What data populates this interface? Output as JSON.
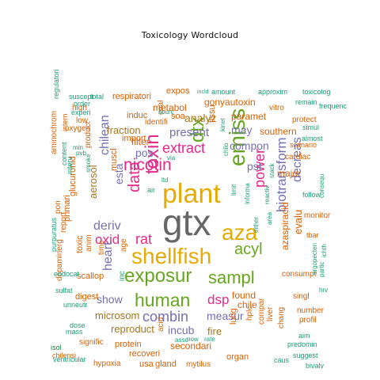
{
  "title": "Toxicology  Wordcloud",
  "palette": {
    "teal": "#1b9e77",
    "orange": "#d95f02",
    "purple": "#7570b3",
    "pink": "#e7298a",
    "green": "#66a61e",
    "gold": "#e6ab02",
    "brown": "#a6761d",
    "gray": "#666666"
  },
  "words": [
    {
      "text": "gtx",
      "color": "gray"
    },
    {
      "text": "shellfish",
      "color": "gold"
    },
    {
      "text": "plant",
      "color": "gold"
    },
    {
      "text": "aza",
      "color": "gold"
    },
    {
      "text": "exposur",
      "color": "green"
    },
    {
      "text": "human",
      "color": "green"
    },
    {
      "text": "sampl",
      "color": "green"
    },
    {
      "text": "emiss",
      "color": "green"
    },
    {
      "text": "toxin",
      "color": "pink"
    },
    {
      "text": "acyl",
      "color": "green"
    },
    {
      "text": "nicotin",
      "color": "pink"
    },
    {
      "text": "dtx",
      "color": "green"
    },
    {
      "text": "data",
      "color": "pink"
    },
    {
      "text": "extract",
      "color": "pink"
    },
    {
      "text": "rat",
      "color": "pink"
    },
    {
      "text": "oxid",
      "color": "pink"
    },
    {
      "text": "power",
      "color": "pink"
    },
    {
      "text": "biotransform",
      "color": "purple"
    },
    {
      "text": "combin",
      "color": "purple"
    },
    {
      "text": "dsp",
      "color": "pink"
    },
    {
      "text": "heart",
      "color": "purple"
    },
    {
      "text": "chilean",
      "color": "purple"
    },
    {
      "text": "deriv",
      "color": "purple"
    },
    {
      "text": "show",
      "color": "purple"
    },
    {
      "text": "decreas",
      "color": "purple"
    },
    {
      "text": "present",
      "color": "purple"
    },
    {
      "text": "compon",
      "color": "purple"
    },
    {
      "text": "pst",
      "color": "purple"
    },
    {
      "text": "pos",
      "color": "purple"
    },
    {
      "text": "esta",
      "color": "purple"
    },
    {
      "text": "measur",
      "color": "purple"
    },
    {
      "text": "incub",
      "color": "purple"
    },
    {
      "text": "analyz",
      "color": "brown"
    },
    {
      "text": "microsom",
      "color": "brown"
    },
    {
      "text": "reproduct",
      "color": "brown"
    },
    {
      "text": "aerosol",
      "color": "brown"
    },
    {
      "text": "fraction",
      "color": "brown"
    },
    {
      "text": "fire",
      "color": "brown"
    },
    {
      "text": "may",
      "color": "purple"
    },
    {
      "text": "found",
      "color": "orange"
    },
    {
      "text": "chile",
      "color": "orange"
    },
    {
      "text": "secondari",
      "color": "orange"
    },
    {
      "text": "glucuronid",
      "color": "orange"
    },
    {
      "text": "evalu",
      "color": "orange"
    },
    {
      "text": "azaspiracid",
      "color": "orange"
    },
    {
      "text": "gonyautoxin",
      "color": "orange"
    },
    {
      "text": "southern",
      "color": "orange"
    },
    {
      "text": "paramet",
      "color": "orange"
    },
    {
      "text": "soa",
      "color": "orange"
    },
    {
      "text": "metabol",
      "color": "orange"
    },
    {
      "text": "induc",
      "color": "orange"
    },
    {
      "text": "respiratori",
      "color": "orange"
    },
    {
      "text": "expos",
      "color": "orange"
    },
    {
      "text": "filter",
      "color": "orange"
    },
    {
      "text": "import",
      "color": "orange"
    },
    {
      "text": "tissu",
      "color": "orange"
    },
    {
      "text": "lung",
      "color": "orange"
    },
    {
      "text": "hplc",
      "color": "orange"
    },
    {
      "text": "protein",
      "color": "orange"
    },
    {
      "text": "recoveri",
      "color": "orange"
    },
    {
      "text": "usa",
      "color": "orange"
    },
    {
      "text": "gland",
      "color": "orange"
    },
    {
      "text": "mytilus",
      "color": "orange"
    },
    {
      "text": "organ",
      "color": "orange"
    },
    {
      "text": "muscl",
      "color": "orange"
    },
    {
      "text": "primari",
      "color": "orange"
    },
    {
      "text": "major",
      "color": "orange"
    },
    {
      "text": "scallop",
      "color": "orange"
    },
    {
      "text": "digest",
      "color": "orange"
    },
    {
      "text": "signific",
      "color": "orange"
    },
    {
      "text": "hypoxia",
      "color": "orange"
    },
    {
      "text": "oxygen",
      "color": "orange"
    },
    {
      "text": "low",
      "color": "orange"
    },
    {
      "text": "high",
      "color": "orange"
    },
    {
      "text": "identifi",
      "color": "orange"
    },
    {
      "text": "cardiac",
      "color": "orange"
    },
    {
      "text": "consumpt",
      "color": "orange"
    },
    {
      "text": "singl",
      "color": "orange"
    },
    {
      "text": "liver",
      "color": "orange"
    },
    {
      "text": "chang",
      "color": "orange"
    },
    {
      "text": "profil",
      "color": "orange"
    },
    {
      "text": "number",
      "color": "orange"
    },
    {
      "text": "toxic",
      "color": "orange"
    },
    {
      "text": "anim",
      "color": "orange"
    },
    {
      "text": "time",
      "color": "orange"
    },
    {
      "text": "aminochrom",
      "color": "orange"
    },
    {
      "text": "pon",
      "color": "orange"
    },
    {
      "text": "report",
      "color": "orange"
    },
    {
      "text": "dopaminerg",
      "color": "orange"
    },
    {
      "text": "protect",
      "color": "orange"
    },
    {
      "text": "vitro",
      "color": "orange"
    },
    {
      "text": "age",
      "color": "orange"
    },
    {
      "text": "coal",
      "color": "orange"
    },
    {
      "text": "monitor",
      "color": "orange"
    },
    {
      "text": "compar",
      "color": "orange"
    },
    {
      "text": "tbar",
      "color": "orange"
    },
    {
      "text": "scenario",
      "color": "orange"
    },
    {
      "text": "isol",
      "color": "orange"
    },
    {
      "text": "chilensi",
      "color": "orange"
    },
    {
      "text": "product",
      "color": "orange"
    },
    {
      "text": "acid",
      "color": "orange"
    },
    {
      "text": "intern",
      "color": "orange"
    },
    {
      "text": "total",
      "color": "teal"
    },
    {
      "text": "suscept",
      "color": "teal"
    },
    {
      "text": "order",
      "color": "teal"
    },
    {
      "text": "experi",
      "color": "teal"
    },
    {
      "text": "regulatori",
      "color": "teal"
    },
    {
      "text": "content",
      "color": "teal"
    },
    {
      "text": "interv",
      "color": "teal"
    },
    {
      "text": "min",
      "color": "teal"
    },
    {
      "text": "pvb",
      "color": "teal"
    },
    {
      "text": "sourc",
      "color": "teal"
    },
    {
      "text": "incld",
      "color": "teal"
    },
    {
      "text": "amount",
      "color": "teal"
    },
    {
      "text": "approxim",
      "color": "teal"
    },
    {
      "text": "toxicolog",
      "color": "teal"
    },
    {
      "text": "remain",
      "color": "teal"
    },
    {
      "text": "frequenc",
      "color": "teal"
    },
    {
      "text": "simul",
      "color": "teal"
    },
    {
      "text": "almost",
      "color": "teal"
    },
    {
      "text": "follow",
      "color": "teal"
    },
    {
      "text": "consequ",
      "color": "teal"
    },
    {
      "text": "either",
      "color": "teal"
    },
    {
      "text": "reactiv",
      "color": "teal"
    },
    {
      "text": "stack",
      "color": "teal"
    },
    {
      "text": "area",
      "color": "teal"
    },
    {
      "text": "informa",
      "color": "teal"
    },
    {
      "text": "limit",
      "color": "teal"
    },
    {
      "text": "chilo",
      "color": "teal"
    },
    {
      "text": "via",
      "color": "teal"
    },
    {
      "text": "ltd",
      "color": "teal"
    },
    {
      "text": "air",
      "color": "teal"
    },
    {
      "text": "kinet",
      "color": "teal"
    },
    {
      "text": "purpuratus",
      "color": "teal"
    },
    {
      "text": "end",
      "color": "teal"
    },
    {
      "text": "locat",
      "color": "teal"
    },
    {
      "text": "sulfat",
      "color": "teal"
    },
    {
      "text": "unneutr",
      "color": "teal"
    },
    {
      "text": "dose",
      "color": "teal"
    },
    {
      "text": "mass",
      "color": "teal"
    },
    {
      "text": "ventricular",
      "color": "teal"
    },
    {
      "text": "isol",
      "color": "teal"
    },
    {
      "text": "asso",
      "color": "teal"
    },
    {
      "text": "now",
      "color": "teal"
    },
    {
      "text": "rate",
      "color": "teal"
    },
    {
      "text": "caus",
      "color": "teal"
    },
    {
      "text": "suggest",
      "color": "teal"
    },
    {
      "text": "bivalv",
      "color": "teal"
    },
    {
      "text": "predomin",
      "color": "teal"
    },
    {
      "text": "aim",
      "color": "teal"
    },
    {
      "text": "argopecten",
      "color": "teal"
    },
    {
      "text": "partic",
      "color": "teal"
    },
    {
      "text": "ichth",
      "color": "teal"
    },
    {
      "text": "hrv",
      "color": "teal"
    },
    {
      "text": "inc",
      "color": "teal"
    },
    {
      "text": "smoke",
      "color": "teal"
    }
  ]
}
